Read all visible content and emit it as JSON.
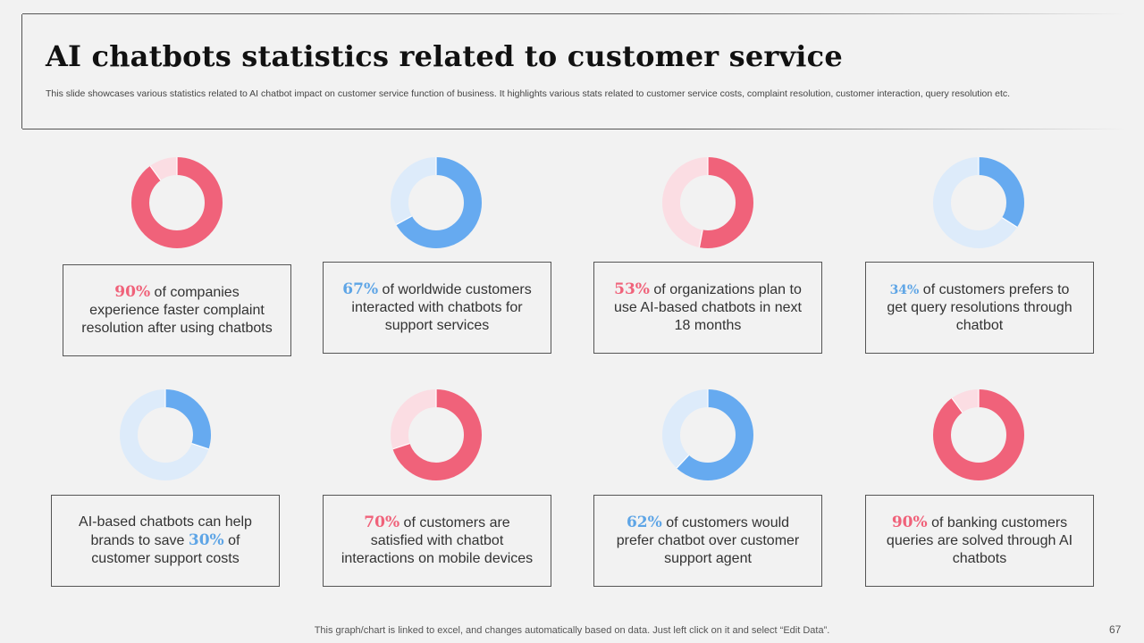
{
  "header": {
    "title": "AI chatbots statistics related to customer service",
    "description": "This slide showcases various statistics related to AI chatbot impact on customer service function of business. It highlights various stats related to customer service costs, complaint resolution, customer interaction, query resolution etc."
  },
  "colors": {
    "red": "#f0627a",
    "red_light": "#fbdde3",
    "blue": "#66aaf0",
    "blue_light": "#ddebfa"
  },
  "chart_data": [
    {
      "type": "pie",
      "labels": [
        "value",
        "remainder"
      ],
      "values": [
        90,
        10
      ],
      "color": "red"
    },
    {
      "type": "pie",
      "labels": [
        "value",
        "remainder"
      ],
      "values": [
        67,
        33
      ],
      "color": "blue"
    },
    {
      "type": "pie",
      "labels": [
        "value",
        "remainder"
      ],
      "values": [
        53,
        47
      ],
      "color": "red"
    },
    {
      "type": "pie",
      "labels": [
        "value",
        "remainder"
      ],
      "values": [
        34,
        66
      ],
      "color": "blue"
    },
    {
      "type": "pie",
      "labels": [
        "value",
        "remainder"
      ],
      "values": [
        30,
        70
      ],
      "color": "blue"
    },
    {
      "type": "pie",
      "labels": [
        "value",
        "remainder"
      ],
      "values": [
        70,
        30
      ],
      "color": "red"
    },
    {
      "type": "pie",
      "labels": [
        "value",
        "remainder"
      ],
      "values": [
        62,
        38
      ],
      "color": "blue"
    },
    {
      "type": "pie",
      "labels": [
        "value",
        "remainder"
      ],
      "values": [
        90,
        10
      ],
      "color": "red"
    }
  ],
  "cards": [
    {
      "pct": "90%",
      "color": "red",
      "before": "",
      "after": " of companies experience faster complaint resolution after using chatbots"
    },
    {
      "pct": "67%",
      "color": "blue",
      "before": "",
      "after": " of worldwide customers interacted with chatbots for support services"
    },
    {
      "pct": "53%",
      "color": "red",
      "before": "",
      "after": " of organizations plan to use AI-based chatbots in next 18 months"
    },
    {
      "pct": "34%",
      "color": "blue",
      "before": "",
      "after": " of customers prefers to get query resolutions through chatbot"
    },
    {
      "pct": "30%",
      "color": "blue",
      "before": "AI-based chatbots can help brands to save ",
      "after": " of customer support costs"
    },
    {
      "pct": "70%",
      "color": "red",
      "before": "",
      "after": " of customers are satisfied with chatbot interactions on mobile devices"
    },
    {
      "pct": "62%",
      "color": "blue",
      "before": "",
      "after": " of customers would prefer chatbot over customer support agent"
    },
    {
      "pct": "90%",
      "color": "red",
      "before": "",
      "after": " of banking customers queries are solved through AI chatbots"
    }
  ],
  "footer": {
    "note": "This graph/chart is linked to excel,  and changes automatically based on data. Just left click on it and select “Edit Data”.",
    "page_number": "67"
  }
}
